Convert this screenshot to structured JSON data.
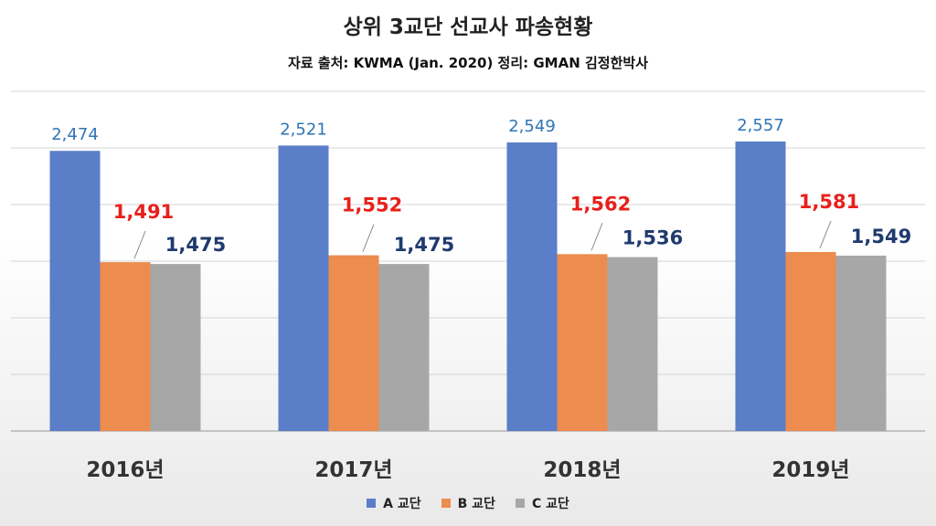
{
  "chart_data": {
    "type": "bar",
    "title": "상위 3교단 선교사 파송현황",
    "subtitle": "자료 출처: KWMA (Jan. 2020) 정리: GMAN 김정한박사",
    "categories": [
      "2016년",
      "2017년",
      "2018년",
      "2019년"
    ],
    "series": [
      {
        "name": "A 교단",
        "values": [
          2474,
          2521,
          2549,
          2557
        ],
        "labels": [
          "2,474",
          "2,521",
          "2,549",
          "2,557"
        ],
        "color": "#5b7ec8",
        "label_color": "#2e75b6"
      },
      {
        "name": "B 교단",
        "values": [
          1491,
          1552,
          1562,
          1581
        ],
        "labels": [
          "1,491",
          "1,552",
          "1,562",
          "1,581"
        ],
        "color": "#ec8c4e",
        "label_color": "#e8201b"
      },
      {
        "name": "C 교단",
        "values": [
          1475,
          1475,
          1536,
          1549
        ],
        "labels": [
          "1,475",
          "1,475",
          "1,536",
          "1,549"
        ],
        "color": "#a7a7a7",
        "label_color": "#1f3a6e"
      }
    ],
    "ylim": [
      0,
      3000
    ],
    "grid": true,
    "legend_position": "bottom"
  }
}
